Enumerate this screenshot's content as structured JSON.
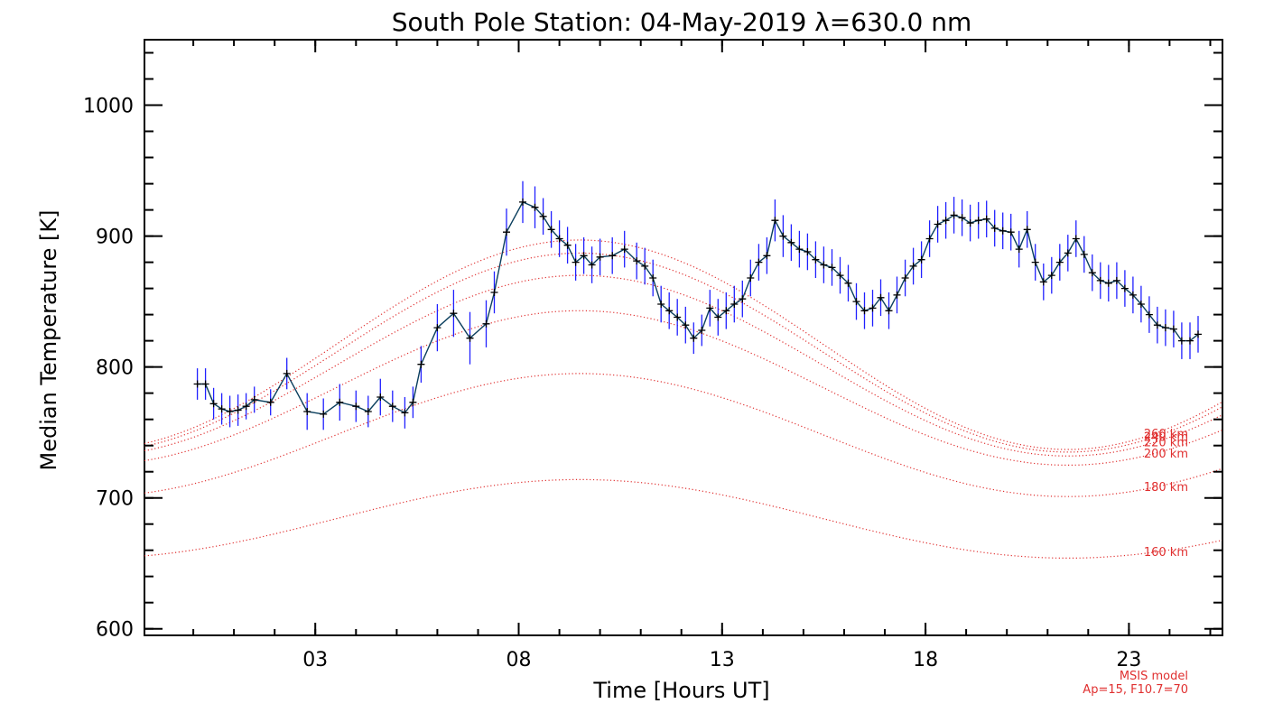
{
  "chart_data": {
    "type": "line",
    "title": "South Pole Station: 04-May-2019 λ=630.0 nm",
    "xlabel": "Time [Hours UT]",
    "ylabel": "Median Temperature [K]",
    "xlim": [
      -1.2,
      25.3
    ],
    "ylim": [
      595,
      1050
    ],
    "x_ticks": [
      {
        "value": 3,
        "label": "03"
      },
      {
        "value": 8,
        "label": "08"
      },
      {
        "value": 13,
        "label": "13"
      },
      {
        "value": 18,
        "label": "18"
      },
      {
        "value": 23,
        "label": "23"
      }
    ],
    "y_ticks": [
      {
        "value": 600,
        "label": "600"
      },
      {
        "value": 700,
        "label": "700"
      },
      {
        "value": 800,
        "label": "800"
      },
      {
        "value": 900,
        "label": "900"
      },
      {
        "value": 1000,
        "label": "1000"
      }
    ],
    "grid": false,
    "measured": {
      "line_color": "#0b3f5e",
      "errorbar_color": "#2020ff",
      "marker": "+",
      "points": [
        [
          0.1,
          787,
          12
        ],
        [
          0.3,
          787,
          12
        ],
        [
          0.5,
          772,
          12
        ],
        [
          0.7,
          768,
          12
        ],
        [
          0.9,
          766,
          12
        ],
        [
          1.1,
          767,
          12
        ],
        [
          1.3,
          770,
          10
        ],
        [
          1.5,
          775,
          10
        ],
        [
          1.9,
          773,
          10
        ],
        [
          2.3,
          795,
          12
        ],
        [
          2.8,
          766,
          14
        ],
        [
          3.2,
          764,
          12
        ],
        [
          3.6,
          773,
          14
        ],
        [
          4.0,
          770,
          12
        ],
        [
          4.3,
          766,
          12
        ],
        [
          4.6,
          777,
          14
        ],
        [
          4.9,
          770,
          12
        ],
        [
          5.2,
          765,
          12
        ],
        [
          5.4,
          773,
          12
        ],
        [
          5.6,
          802,
          14
        ],
        [
          6.0,
          830,
          18
        ],
        [
          6.4,
          841,
          18
        ],
        [
          6.8,
          822,
          20
        ],
        [
          7.2,
          833,
          18
        ],
        [
          7.4,
          857,
          16
        ],
        [
          7.7,
          903,
          18
        ],
        [
          8.1,
          926,
          16
        ],
        [
          8.4,
          922,
          16
        ],
        [
          8.6,
          915,
          14
        ],
        [
          8.8,
          905,
          14
        ],
        [
          9.0,
          898,
          14
        ],
        [
          9.2,
          893,
          14
        ],
        [
          9.4,
          880,
          14
        ],
        [
          9.6,
          885,
          14
        ],
        [
          9.8,
          878,
          14
        ],
        [
          10.0,
          884,
          14
        ],
        [
          10.3,
          885,
          14
        ],
        [
          10.6,
          890,
          14
        ],
        [
          10.9,
          881,
          14
        ],
        [
          11.1,
          877,
          14
        ],
        [
          11.3,
          868,
          14
        ],
        [
          11.5,
          848,
          14
        ],
        [
          11.7,
          843,
          14
        ],
        [
          11.9,
          838,
          14
        ],
        [
          12.1,
          832,
          14
        ],
        [
          12.3,
          822,
          12
        ],
        [
          12.5,
          828,
          12
        ],
        [
          12.7,
          845,
          14
        ],
        [
          12.9,
          838,
          14
        ],
        [
          13.1,
          843,
          14
        ],
        [
          13.3,
          848,
          14
        ],
        [
          13.5,
          852,
          14
        ],
        [
          13.7,
          868,
          14
        ],
        [
          13.9,
          880,
          14
        ],
        [
          14.1,
          885,
          14
        ],
        [
          14.3,
          912,
          16
        ],
        [
          14.5,
          900,
          16
        ],
        [
          14.7,
          895,
          14
        ],
        [
          14.9,
          890,
          14
        ],
        [
          15.1,
          888,
          14
        ],
        [
          15.3,
          882,
          14
        ],
        [
          15.5,
          878,
          14
        ],
        [
          15.7,
          876,
          14
        ],
        [
          15.9,
          870,
          14
        ],
        [
          16.1,
          864,
          14
        ],
        [
          16.3,
          850,
          14
        ],
        [
          16.5,
          843,
          14
        ],
        [
          16.7,
          845,
          14
        ],
        [
          16.9,
          853,
          14
        ],
        [
          17.1,
          843,
          14
        ],
        [
          17.3,
          855,
          14
        ],
        [
          17.5,
          868,
          14
        ],
        [
          17.7,
          877,
          14
        ],
        [
          17.9,
          882,
          14
        ],
        [
          18.1,
          898,
          14
        ],
        [
          18.3,
          909,
          14
        ],
        [
          18.5,
          912,
          14
        ],
        [
          18.7,
          916,
          14
        ],
        [
          18.9,
          914,
          14
        ],
        [
          19.1,
          910,
          14
        ],
        [
          19.3,
          912,
          14
        ],
        [
          19.5,
          913,
          14
        ],
        [
          19.7,
          906,
          14
        ],
        [
          19.9,
          904,
          14
        ],
        [
          20.1,
          903,
          14
        ],
        [
          20.3,
          890,
          14
        ],
        [
          20.5,
          905,
          14
        ],
        [
          20.7,
          880,
          14
        ],
        [
          20.9,
          865,
          14
        ],
        [
          21.1,
          870,
          14
        ],
        [
          21.3,
          880,
          14
        ],
        [
          21.5,
          887,
          14
        ],
        [
          21.7,
          898,
          14
        ],
        [
          21.9,
          886,
          14
        ],
        [
          22.1,
          872,
          14
        ],
        [
          22.3,
          866,
          14
        ],
        [
          22.5,
          864,
          14
        ],
        [
          22.7,
          866,
          14
        ],
        [
          22.9,
          860,
          14
        ],
        [
          23.1,
          855,
          14
        ],
        [
          23.3,
          848,
          14
        ],
        [
          23.5,
          840,
          14
        ],
        [
          23.7,
          832,
          14
        ],
        [
          23.9,
          830,
          14
        ],
        [
          24.1,
          829,
          14
        ],
        [
          24.3,
          820,
          14
        ],
        [
          24.5,
          820,
          14
        ],
        [
          24.7,
          825,
          14
        ]
      ]
    },
    "model": {
      "name": "MSIS model",
      "params": "Ap=15, F10.7=70",
      "color": "#e03030",
      "curves": [
        {
          "label": "160 km",
          "base": 684,
          "amp": 30
        },
        {
          "label": "180 km",
          "base": 748,
          "amp": 47
        },
        {
          "label": "200 km",
          "base": 784,
          "amp": 59
        },
        {
          "label": "220 km",
          "base": 801,
          "amp": 69
        },
        {
          "label": "240 km",
          "base": 811,
          "amp": 76
        },
        {
          "label": "260 km",
          "base": 817,
          "amp": 80
        }
      ]
    }
  }
}
